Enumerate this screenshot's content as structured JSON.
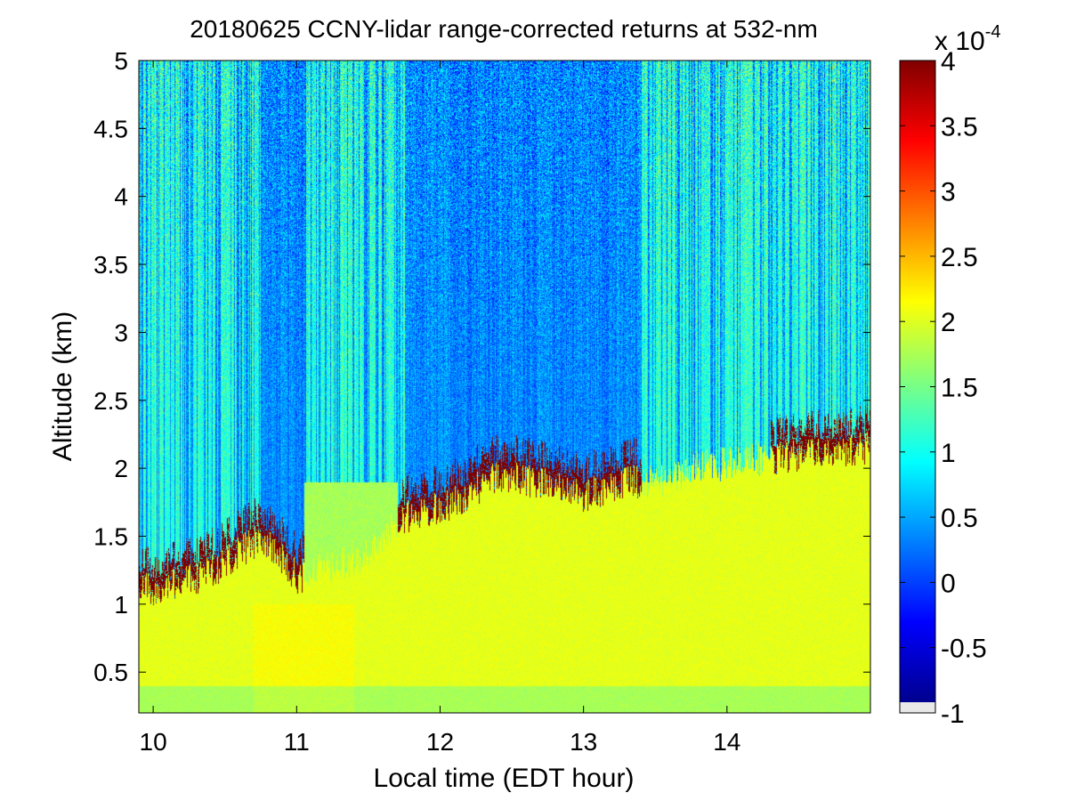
{
  "chart_data": {
    "type": "heatmap",
    "title": "20180625 CCNY-lidar range-corrected returns at 532-nm",
    "xlabel": "Local time (EDT hour)",
    "ylabel": "Altitude (km)",
    "xlim": [
      9.9,
      15.0
    ],
    "ylim": [
      0.2,
      5.0
    ],
    "xticks": [
      10,
      11,
      12,
      13,
      14
    ],
    "xtick_labels": [
      "10",
      "11",
      "12",
      "13",
      "14"
    ],
    "yticks": [
      0.5,
      1,
      1.5,
      2,
      2.5,
      3,
      3.5,
      4,
      4.5,
      5
    ],
    "ytick_labels": [
      "0.5",
      "1",
      "1.5",
      "2",
      "2.5",
      "3",
      "3.5",
      "4",
      "4.5",
      "5"
    ],
    "colormap": "jet",
    "colorbar": {
      "min": -1,
      "max": 4,
      "ticks": [
        -1,
        -0.5,
        0,
        0.5,
        1,
        1.5,
        2,
        2.5,
        3,
        3.5,
        4
      ],
      "tick_labels": [
        "-1",
        "-0.5",
        "0",
        "0.5",
        "1",
        "1.5",
        "2",
        "2.5",
        "3",
        "3.5",
        "4"
      ],
      "multiplier_prefix": "x 10",
      "multiplier_exponent": "-4"
    },
    "cloud_layer_top_km": [
      {
        "t": 9.9,
        "z": 1.25
      },
      {
        "t": 10.2,
        "z": 1.3
      },
      {
        "t": 10.5,
        "z": 1.45
      },
      {
        "t": 10.75,
        "z": 1.65
      },
      {
        "t": 11.0,
        "z": 1.35
      },
      {
        "t": 11.45,
        "z": 1.5
      },
      {
        "t": 11.75,
        "z": 1.8
      },
      {
        "t": 12.1,
        "z": 1.9
      },
      {
        "t": 12.4,
        "z": 2.1
      },
      {
        "t": 12.7,
        "z": 2.05
      },
      {
        "t": 13.0,
        "z": 1.95
      },
      {
        "t": 13.3,
        "z": 2.05
      },
      {
        "t": 13.5,
        "z": 2.05
      },
      {
        "t": 13.75,
        "z": 2.15
      },
      {
        "t": 14.1,
        "z": 2.2
      },
      {
        "t": 14.5,
        "z": 2.25
      },
      {
        "t": 14.9,
        "z": 2.3
      }
    ]
  }
}
